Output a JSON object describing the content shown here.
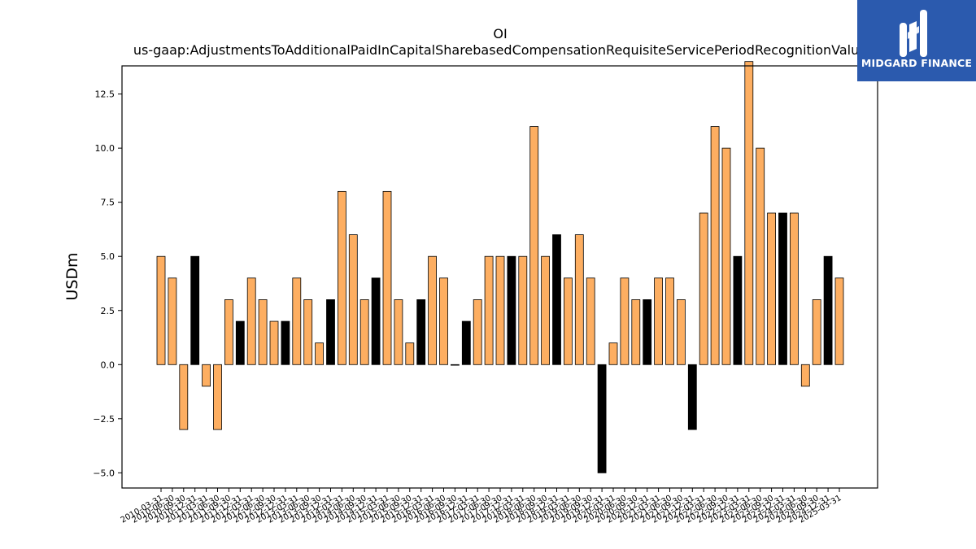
{
  "header": {
    "title_line1": "OI",
    "title_line2": "us-gaap:AdjustmentsToAdditionalPaidInCapitalSharebasedCompensationRequisiteServicePeriodRecognitionValue"
  },
  "logo": {
    "brand": "MIDGARD FINANCE",
    "icon": "midgard-logo-icon",
    "color": "#2b5aae"
  },
  "chart_data": {
    "type": "bar",
    "title": "OI\nus-gaap:AdjustmentsToAdditionalPaidInCapitalSharebasedCompensationRequisiteServicePeriodRecognitionValue",
    "xlabel": "",
    "ylabel": "USDm",
    "ylim": [
      -5.7,
      13.8
    ],
    "yticks": [
      -5.0,
      -2.5,
      0.0,
      2.5,
      5.0,
      7.5,
      10.0,
      12.5
    ],
    "ytick_labels": [
      "−5.0",
      "−2.5",
      "0.0",
      "2.5",
      "5.0",
      "7.5",
      "10.0",
      "12.5"
    ],
    "grid": false,
    "colors": {
      "quarter": "#fdae61",
      "annual": "#000000",
      "edge": "#000000"
    },
    "categories": [
      "2010-03-31",
      "2010-06-30",
      "2010-09-30",
      "2010-12-31",
      "2011-03-31",
      "2011-06-30",
      "2011-09-30",
      "2011-12-31",
      "2012-03-31",
      "2012-06-30",
      "2012-09-30",
      "2012-12-31",
      "2013-03-31",
      "2013-06-30",
      "2013-09-30",
      "2013-12-31",
      "2014-03-31",
      "2014-06-30",
      "2014-09-30",
      "2014-12-31",
      "2015-03-31",
      "2015-06-30",
      "2015-09-30",
      "2015-12-31",
      "2016-03-31",
      "2016-06-30",
      "2016-09-30",
      "2016-12-31",
      "2017-03-31",
      "2017-06-30",
      "2017-09-30",
      "2017-12-31",
      "2018-03-31",
      "2018-06-30",
      "2018-09-30",
      "2018-12-31",
      "2019-03-31",
      "2019-06-30",
      "2019-09-30",
      "2019-12-31",
      "2020-03-31",
      "2020-06-30",
      "2020-09-30",
      "2020-12-31",
      "2021-03-31",
      "2021-06-30",
      "2021-09-30",
      "2021-12-31",
      "2022-03-31",
      "2022-06-30",
      "2022-09-30",
      "2022-12-31",
      "2023-03-31",
      "2023-06-30",
      "2023-09-30",
      "2023-12-31",
      "2024-03-31",
      "2024-06-30",
      "2024-09-30",
      "2024-12-31",
      "2025-03-31"
    ],
    "values": [
      5,
      4,
      -3,
      5,
      -1,
      -3,
      3,
      2,
      4,
      3,
      2,
      2,
      4,
      3,
      1,
      3,
      8,
      6,
      3,
      4,
      8,
      3,
      1,
      3,
      5,
      4,
      0,
      2,
      3,
      5,
      5,
      5,
      5,
      11,
      5,
      6,
      4,
      6,
      4,
      -5,
      1,
      4,
      3,
      3,
      4,
      4,
      3,
      -3,
      7,
      11,
      10,
      5,
      14,
      10,
      7,
      7,
      7,
      -1,
      3,
      5,
      4
    ],
    "is_annual": [
      false,
      false,
      false,
      true,
      false,
      false,
      false,
      true,
      false,
      false,
      false,
      true,
      false,
      false,
      false,
      true,
      false,
      false,
      false,
      true,
      false,
      false,
      false,
      true,
      false,
      false,
      false,
      true,
      false,
      false,
      false,
      true,
      false,
      false,
      false,
      true,
      false,
      false,
      false,
      true,
      false,
      false,
      false,
      true,
      false,
      false,
      false,
      true,
      false,
      false,
      false,
      true,
      false,
      false,
      false,
      true,
      false,
      false,
      false,
      true,
      false
    ]
  }
}
